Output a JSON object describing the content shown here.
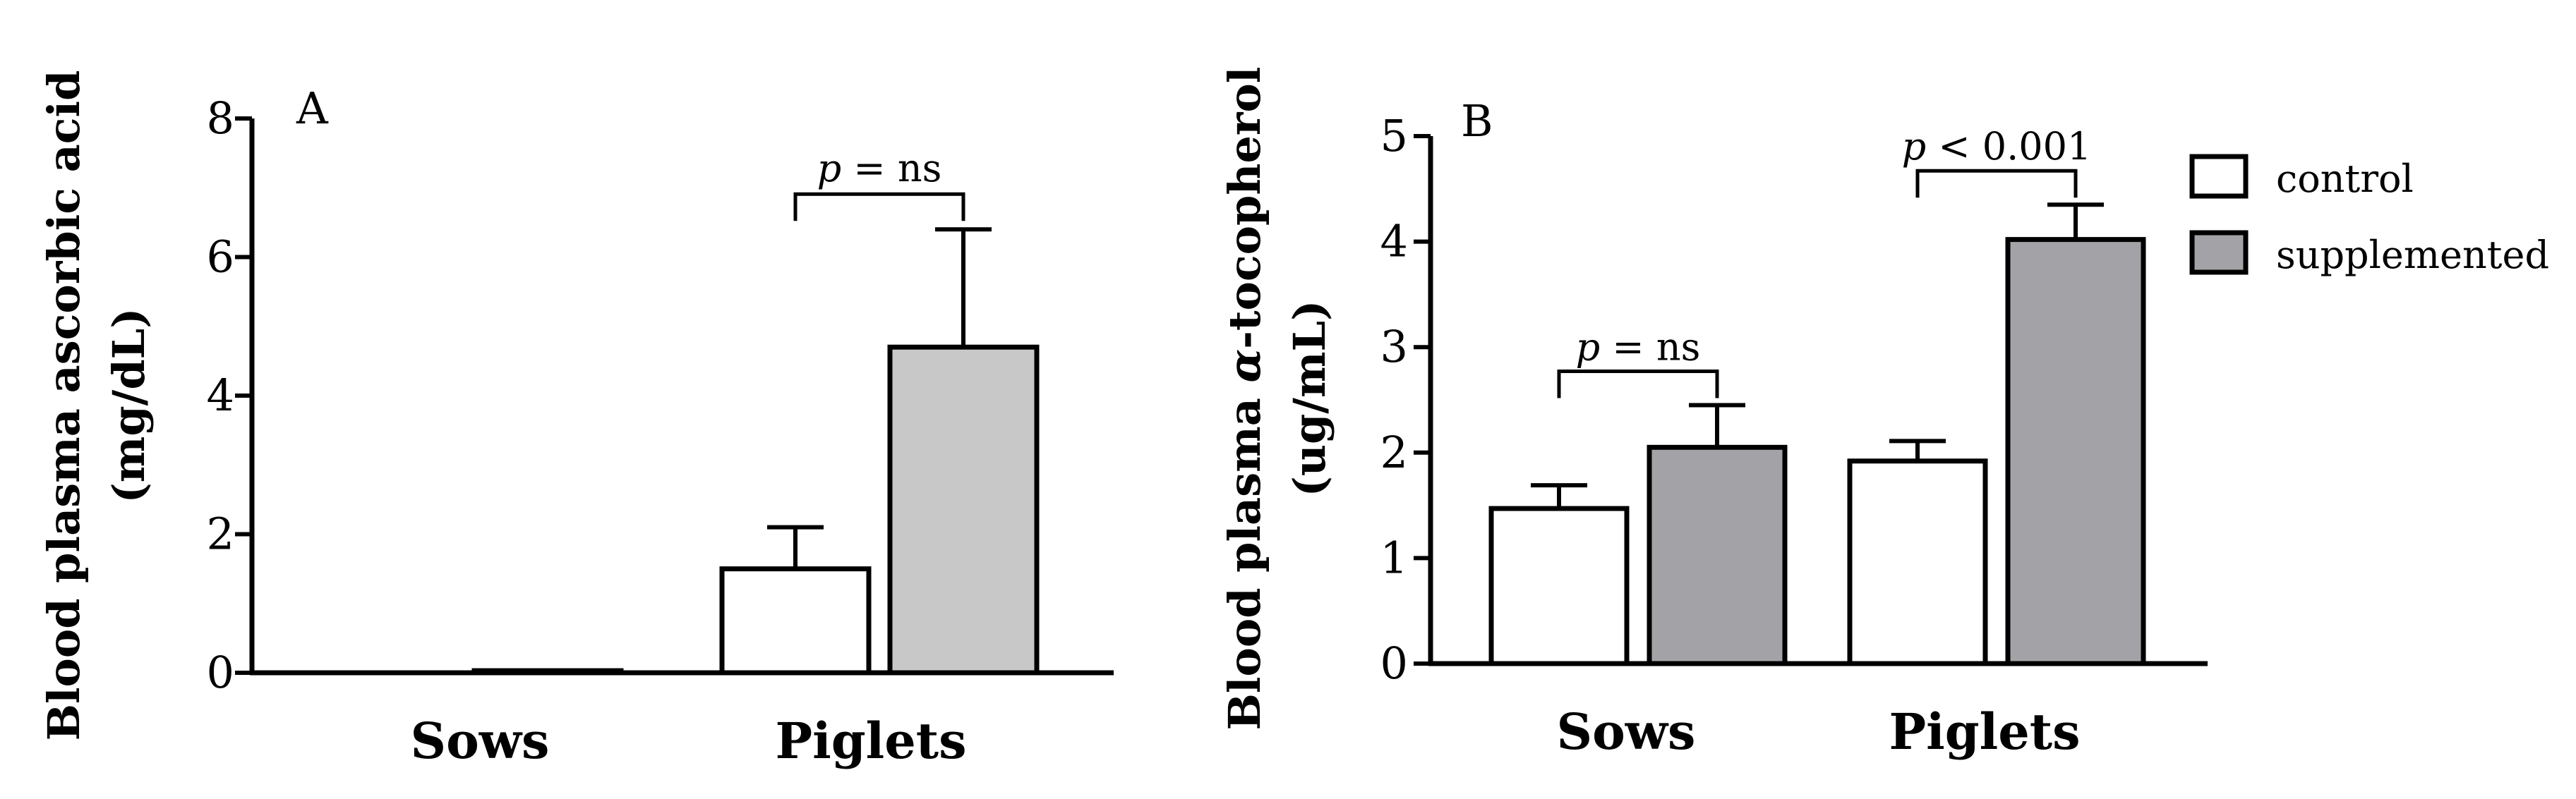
{
  "chart_data": [
    {
      "panel": "A",
      "type": "bar",
      "categories": [
        "Sows",
        "Piglets"
      ],
      "ylabel_line1": "Blood plasma ascorbic acid",
      "ylabel_line2": "(mg/dL)",
      "ylim": [
        0,
        8
      ],
      "yticks": [
        0,
        2,
        4,
        6,
        8
      ],
      "series": [
        {
          "name": "control",
          "values": [
            0.0,
            1.5
          ],
          "errors": [
            0.0,
            0.6
          ],
          "color": "#ffffff"
        },
        {
          "name": "supplemented",
          "values": [
            0.03,
            4.7
          ],
          "errors": [
            0.0,
            1.7
          ],
          "color": "#c8c8c8"
        }
      ],
      "significance": [
        {
          "category": "Piglets",
          "p_symbol": "p",
          "text": " = ns"
        }
      ]
    },
    {
      "panel": "B",
      "type": "bar",
      "categories": [
        "Sows",
        "Piglets"
      ],
      "ylabel_line1_pre": "Blood plasma ",
      "ylabel_line1_greek": "α",
      "ylabel_line1_post": "-tocopherol",
      "ylabel_line2": "(ug/mL)",
      "ylim": [
        0,
        5
      ],
      "yticks": [
        0,
        1,
        2,
        3,
        4,
        5
      ],
      "series": [
        {
          "name": "control",
          "values": [
            1.47,
            1.92
          ],
          "errors": [
            0.22,
            0.19
          ],
          "color": "#ffffff"
        },
        {
          "name": "supplemented",
          "values": [
            2.05,
            4.02
          ],
          "errors": [
            0.4,
            0.33
          ],
          "color": "#a3a3a7"
        }
      ],
      "significance": [
        {
          "category": "Sows",
          "p_symbol": "p",
          "text": " = ns"
        },
        {
          "category": "Piglets",
          "p_symbol": "p",
          "text": " < 0.001"
        }
      ],
      "legend": {
        "position": "top-right",
        "entries": [
          "control",
          "supplemented"
        ]
      }
    }
  ]
}
